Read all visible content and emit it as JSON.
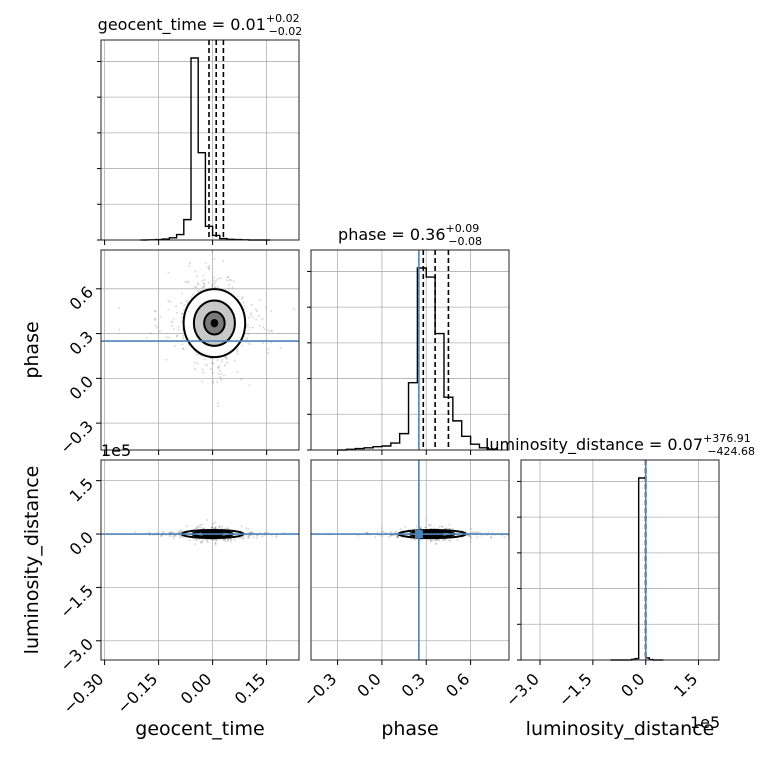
{
  "colors": {
    "truth": "#4c83b8",
    "hist": "#000000",
    "grid": "#b0b0b0",
    "scatter": "#555555"
  },
  "chart_data": {
    "type": "corner",
    "parameters": [
      "geocent_time",
      "phase",
      "luminosity_distance"
    ],
    "axis_labels": [
      "geocent_time",
      "phase",
      "luminosity_distance"
    ],
    "titles": [
      {
        "name": "geocent_time",
        "median": "0.01",
        "plus": "+0.02",
        "minus": "−0.02"
      },
      {
        "name": "phase",
        "median": "0.36",
        "plus": "+0.09",
        "minus": "−0.08"
      },
      {
        "name": "luminosity_distance",
        "median": "0.07",
        "plus": "+376.91",
        "minus": "−424.68"
      }
    ],
    "ranges": [
      [
        -0.31,
        0.24
      ],
      [
        -0.48,
        0.86
      ],
      [
        -354000,
        208000
      ]
    ],
    "ticks": {
      "geocent_time": {
        "values": [
          -0.3,
          -0.15,
          0.0,
          0.15
        ],
        "labels": [
          "−0.30",
          "−0.15",
          "0.00",
          "0.15"
        ]
      },
      "phase": {
        "values": [
          -0.3,
          0.0,
          0.3,
          0.6
        ],
        "labels": [
          "−0.3",
          "0.0",
          "0.3",
          "0.6"
        ]
      },
      "luminosity_distance": {
        "values": [
          -300000,
          -150000,
          0,
          150000
        ],
        "labels": [
          "−3.0",
          "−1.5",
          "0.0",
          "1.5"
        ],
        "offset_label": "1e5"
      }
    },
    "truths": {
      "geocent_time": null,
      "phase": 0.25,
      "luminosity_distance": 0
    },
    "quantiles": {
      "geocent_time": [
        -0.01,
        0.01,
        0.03
      ],
      "phase": [
        0.28,
        0.36,
        0.45
      ],
      "luminosity_distance": [
        -424.61,
        0.07,
        376.98
      ]
    },
    "hist_1d": {
      "geocent_time": {
        "edges": [
          -0.2,
          -0.18,
          -0.16,
          -0.14,
          -0.12,
          -0.1,
          -0.08,
          -0.06,
          -0.04,
          -0.02,
          0.0,
          0.02,
          0.04,
          0.06,
          0.08,
          0.1,
          0.12,
          0.14,
          0.16
        ],
        "counts": [
          0,
          1,
          2,
          5,
          12,
          30,
          112,
          1000,
          480,
          75,
          25,
          8,
          4,
          2,
          1,
          0,
          0,
          0
        ]
      },
      "phase": {
        "edges": [
          -0.3,
          -0.24,
          -0.18,
          -0.12,
          -0.06,
          0.0,
          0.06,
          0.12,
          0.18,
          0.24,
          0.3,
          0.36,
          0.42,
          0.48,
          0.54,
          0.6,
          0.66,
          0.72,
          0.78
        ],
        "counts": [
          0,
          4,
          8,
          12,
          18,
          22,
          38,
          90,
          370,
          1000,
          950,
          640,
          290,
          160,
          75,
          32,
          12,
          5
        ]
      },
      "luminosity_distance": {
        "edges": [
          -100000,
          -50000,
          -40000,
          -30000,
          -20000,
          -10000,
          0,
          10000,
          20000,
          30000,
          40000,
          50000
        ],
        "counts": [
          0,
          0,
          4,
          8,
          1000,
          1000,
          12,
          2,
          0,
          0,
          0
        ]
      }
    },
    "contours_2d": {
      "phase_vs_geocent_time": {
        "center": [
          0.005,
          0.37
        ],
        "sigma": [
          0.03,
          0.08
        ],
        "levels": [
          1,
          2,
          3
        ]
      },
      "luminosity_distance_vs_geocent_time": {
        "center": [
          0.0,
          0.0
        ],
        "sigma": [
          0.03,
          4000
        ],
        "levels": [
          1,
          2,
          3
        ]
      },
      "luminosity_distance_vs_phase": {
        "center": [
          0.34,
          0.0
        ],
        "sigma": [
          0.08,
          4000
        ],
        "levels": [
          1,
          2,
          3
        ]
      }
    },
    "scatter_samples": 3000,
    "grid": true
  }
}
